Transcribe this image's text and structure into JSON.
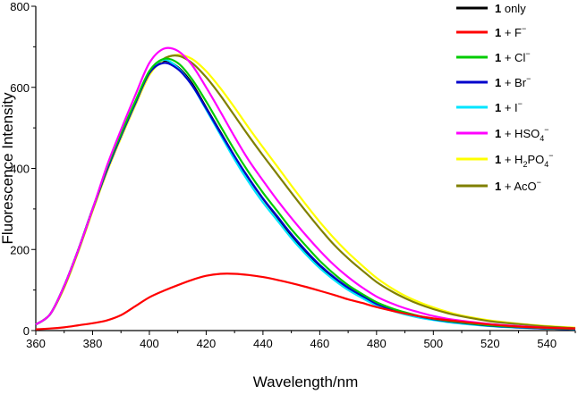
{
  "chart_data": {
    "type": "line",
    "title": "",
    "xlabel": "Wavelength/nm",
    "ylabel": "Fluorescence Intensity",
    "xlim": [
      360,
      550
    ],
    "ylim": [
      0,
      800
    ],
    "xticks": [
      360,
      380,
      400,
      420,
      440,
      460,
      480,
      500,
      520,
      540
    ],
    "yticks": [
      0,
      200,
      400,
      600,
      800
    ],
    "grid": false,
    "legend_position": "top-right",
    "series": [
      {
        "name": "1 only",
        "color": "#000000",
        "x": [
          360,
          365,
          370,
          375,
          380,
          385,
          390,
          395,
          400,
          405,
          410,
          415,
          420,
          425,
          430,
          435,
          440,
          445,
          450,
          455,
          460,
          465,
          470,
          475,
          480,
          485,
          490,
          495,
          500,
          505,
          510,
          520,
          530,
          540,
          550
        ],
        "y": [
          15,
          40,
          110,
          200,
          300,
          395,
          480,
          560,
          635,
          665,
          650,
          610,
          550,
          490,
          430,
          375,
          325,
          280,
          235,
          195,
          160,
          130,
          105,
          85,
          65,
          52,
          42,
          34,
          27,
          22,
          18,
          12,
          8,
          5,
          3
        ]
      },
      {
        "name": "1 + F⁻",
        "color": "#ff0000",
        "x": [
          360,
          365,
          370,
          375,
          380,
          385,
          390,
          395,
          400,
          405,
          410,
          415,
          420,
          425,
          430,
          435,
          440,
          445,
          450,
          455,
          460,
          465,
          470,
          475,
          480,
          490,
          500,
          510,
          520,
          530,
          540,
          550
        ],
        "y": [
          3,
          5,
          8,
          13,
          18,
          25,
          38,
          60,
          82,
          98,
          112,
          125,
          135,
          140,
          140,
          137,
          132,
          125,
          117,
          108,
          98,
          88,
          77,
          68,
          58,
          42,
          30,
          22,
          15,
          10,
          7,
          5
        ]
      },
      {
        "name": "1 + Cl⁻",
        "color": "#00cc00",
        "x": [
          360,
          365,
          370,
          375,
          380,
          385,
          390,
          395,
          400,
          405,
          410,
          415,
          420,
          425,
          430,
          435,
          440,
          445,
          450,
          455,
          460,
          465,
          470,
          475,
          480,
          485,
          490,
          495,
          500,
          505,
          510,
          520,
          530,
          540,
          550
        ],
        "y": [
          15,
          40,
          110,
          200,
          300,
          400,
          485,
          565,
          640,
          670,
          660,
          620,
          565,
          505,
          445,
          390,
          340,
          295,
          250,
          210,
          172,
          140,
          112,
          90,
          70,
          56,
          45,
          36,
          29,
          24,
          20,
          13,
          9,
          6,
          4
        ]
      },
      {
        "name": "1 + Br⁻",
        "color": "#0000cc",
        "x": [
          360,
          365,
          370,
          375,
          380,
          385,
          390,
          395,
          400,
          405,
          410,
          415,
          420,
          425,
          430,
          435,
          440,
          445,
          450,
          455,
          460,
          465,
          470,
          475,
          480,
          485,
          490,
          495,
          500,
          505,
          510,
          520,
          530,
          540,
          550
        ],
        "y": [
          15,
          40,
          110,
          200,
          300,
          395,
          480,
          560,
          635,
          660,
          645,
          605,
          548,
          488,
          430,
          376,
          326,
          282,
          238,
          198,
          162,
          132,
          106,
          86,
          66,
          53,
          43,
          35,
          28,
          23,
          19,
          12,
          8,
          5,
          3
        ]
      },
      {
        "name": "1 + I⁻",
        "color": "#00e5ff",
        "x": [
          360,
          365,
          370,
          375,
          380,
          385,
          390,
          395,
          400,
          405,
          410,
          415,
          420,
          425,
          430,
          435,
          440,
          445,
          450,
          455,
          460,
          465,
          470,
          475,
          480,
          485,
          490,
          495,
          500,
          505,
          510,
          520,
          530,
          540,
          550
        ],
        "y": [
          15,
          40,
          110,
          200,
          300,
          395,
          480,
          560,
          638,
          668,
          648,
          605,
          545,
          483,
          422,
          366,
          316,
          272,
          228,
          189,
          154,
          125,
          100,
          80,
          62,
          50,
          40,
          32,
          26,
          21,
          17,
          11,
          7,
          5,
          3
        ]
      },
      {
        "name": "1 + HSO₄⁻",
        "color": "#ff00ff",
        "x": [
          360,
          365,
          370,
          375,
          380,
          385,
          390,
          395,
          400,
          405,
          410,
          415,
          420,
          425,
          430,
          435,
          440,
          445,
          450,
          455,
          460,
          465,
          470,
          475,
          480,
          485,
          490,
          495,
          500,
          505,
          510,
          520,
          530,
          540,
          550
        ],
        "y": [
          15,
          40,
          110,
          200,
          300,
          405,
          495,
          580,
          660,
          695,
          690,
          655,
          600,
          540,
          478,
          420,
          370,
          322,
          278,
          236,
          197,
          162,
          132,
          106,
          84,
          68,
          55,
          45,
          36,
          29,
          24,
          16,
          11,
          7,
          5
        ]
      },
      {
        "name": "1 + H₂PO₄⁻",
        "color": "#ffff00",
        "x": [
          360,
          365,
          370,
          375,
          380,
          385,
          390,
          395,
          400,
          405,
          410,
          415,
          420,
          425,
          430,
          435,
          440,
          445,
          450,
          455,
          460,
          465,
          470,
          475,
          480,
          485,
          490,
          495,
          500,
          505,
          510,
          520,
          530,
          540,
          550
        ],
        "y": [
          15,
          40,
          105,
          195,
          295,
          390,
          475,
          555,
          630,
          668,
          680,
          670,
          640,
          598,
          550,
          500,
          452,
          405,
          358,
          312,
          268,
          228,
          192,
          160,
          130,
          106,
          86,
          70,
          57,
          46,
          37,
          25,
          17,
          11,
          7
        ]
      },
      {
        "name": "1 + AcO⁻",
        "color": "#808000",
        "x": [
          360,
          365,
          370,
          375,
          380,
          385,
          390,
          395,
          400,
          405,
          410,
          415,
          420,
          425,
          430,
          435,
          440,
          445,
          450,
          455,
          460,
          465,
          470,
          475,
          480,
          485,
          490,
          495,
          500,
          505,
          510,
          520,
          530,
          540,
          550
        ],
        "y": [
          15,
          40,
          108,
          198,
          298,
          395,
          482,
          562,
          635,
          670,
          678,
          660,
          625,
          580,
          530,
          480,
          432,
          386,
          340,
          295,
          252,
          212,
          178,
          148,
          120,
          98,
          80,
          65,
          53,
          43,
          35,
          23,
          16,
          10,
          6
        ]
      }
    ]
  },
  "legend": {
    "entries": [
      {
        "bold": "1",
        "rest": "only",
        "sub": "",
        "after": "",
        "sup": ""
      },
      {
        "bold": "1",
        "rest": "+ F",
        "sub": "",
        "after": "",
        "sup": "−"
      },
      {
        "bold": "1",
        "rest": "+ Cl",
        "sub": "",
        "after": "",
        "sup": "−"
      },
      {
        "bold": "1",
        "rest": "+ Br",
        "sub": "",
        "after": "",
        "sup": "−"
      },
      {
        "bold": "1",
        "rest": "+ I",
        "sub": "",
        "after": "",
        "sup": "−"
      },
      {
        "bold": "1",
        "rest": "+ HSO",
        "sub": "4",
        "after": "",
        "sup": "−"
      },
      {
        "bold": "1",
        "rest": "+ H",
        "sub": "2",
        "after": "PO",
        "sub2": "4",
        "sup": "−"
      },
      {
        "bold": "1",
        "rest": "+ AcO",
        "sub": "",
        "after": "",
        "sup": "−"
      }
    ]
  }
}
